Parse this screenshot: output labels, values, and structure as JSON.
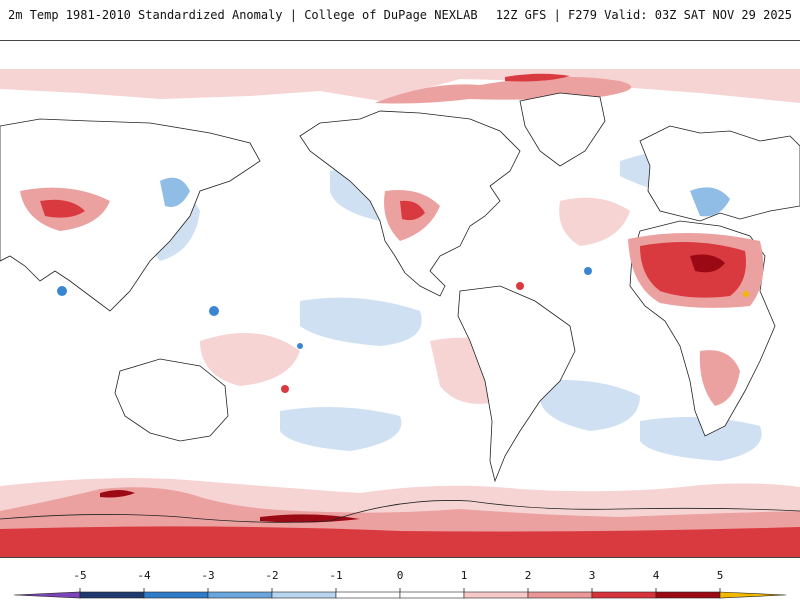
{
  "header": {
    "title": "2m Temp 1981-2010 Standardized Anomaly | College of DuPage NEXLAB",
    "run_info": "12Z GFS | F279 Valid: 03Z SAT NOV 29 2025"
  },
  "colorbar": {
    "ticks": [
      "-5",
      "-4",
      "-3",
      "-2",
      "-1",
      "0",
      "1",
      "2",
      "3",
      "4",
      "5"
    ],
    "colors": {
      "lt_-5": "#7a45b8",
      "-5_-4": "#1f3a6e",
      "-4_-3": "#2e7cc8",
      "-3_-2": "#6aa6dc",
      "-2_-1": "#b9d4ef",
      "-1_0": "#ffffff",
      "0_1": "#ffffff",
      "1_2": "#f6c9c9",
      "2_3": "#e99797",
      "3_4": "#d6343a",
      "4_5": "#9b0a14",
      "gt_5": "#f3b800"
    }
  },
  "map": {
    "type": "global-standardized-anomaly",
    "colors": {
      "background": "#ffffff",
      "coast": "#222222",
      "warm_light": "#f7d4d4",
      "warm_mid": "#eca1a1",
      "warm_strong": "#d93a3f",
      "warm_extreme": "#9b0a14",
      "cold_light": "#cfe0f3",
      "cold_mid": "#90bde6",
      "cold_strong": "#3b86d0",
      "hot_spot": "#f3b800"
    }
  }
}
